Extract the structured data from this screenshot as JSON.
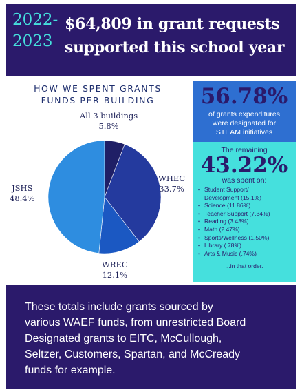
{
  "header": {
    "year_lines": [
      "2022-",
      "2023"
    ],
    "headline_lines": [
      "$64,809 in grant requests",
      "supported this school year"
    ]
  },
  "chart_title_lines": [
    "HOW WE SPENT GRANTS",
    "FUNDS PER BUILDING"
  ],
  "chart_data": {
    "type": "pie",
    "title": "HOW WE SPENT GRANTS FUNDS PER BUILDING",
    "slices": [
      {
        "label": "All 3 buildings",
        "value": 5.8,
        "display": "5.8%",
        "color": "#1f1f66"
      },
      {
        "label": "WHEC",
        "value": 33.7,
        "display": "33.7%",
        "color": "#243a9e"
      },
      {
        "label": "WREC",
        "value": 12.1,
        "display": "12.1%",
        "color": "#1b58c2"
      },
      {
        "label": "JSHS",
        "value": 48.4,
        "display": "48.4%",
        "color": "#2e8de0"
      }
    ]
  },
  "steam": {
    "percent": "56.78%",
    "lines": [
      "of grants expenditures",
      "were designated for",
      "STEAM initiatives"
    ]
  },
  "remaining": {
    "intro": "The remaining",
    "percent": "43.22%",
    "sub": "was spent on:",
    "items": [
      [
        "Student Support/",
        "Development (15.1%)"
      ],
      [
        "Science (11.86%)"
      ],
      [
        "Teacher Support (7.34%)"
      ],
      [
        "Reading (3.43%)"
      ],
      [
        "Math (2.47%)"
      ],
      [
        "Sports/Wellness (1.50%)"
      ],
      [
        "Library (.78%)"
      ],
      [
        "Arts & Music (.74%)"
      ]
    ],
    "ending": "...in that order."
  },
  "footer": {
    "lines": [
      "These totals include grants sourced by",
      "various WAEF funds, from unrestricted Board",
      "Designated grants to EITC, McCullough,",
      "Seltzer, Customers, Spartan, and McCready",
      "funds for example."
    ]
  }
}
